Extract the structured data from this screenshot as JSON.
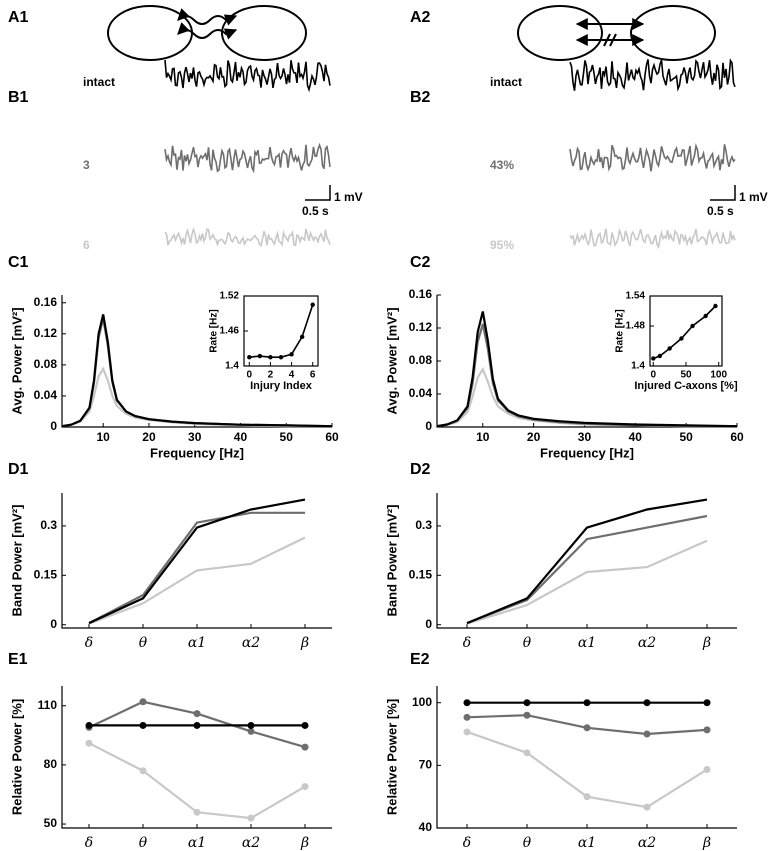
{
  "panel_labels": [
    "A1",
    "A2",
    "B1",
    "B2",
    "C1",
    "C2",
    "D1",
    "D2",
    "E1",
    "E2"
  ],
  "traces": {
    "left": [
      {
        "label": "intact",
        "color": "#000000"
      },
      {
        "label": "3",
        "color": "#6e6e6e"
      },
      {
        "label": "6",
        "color": "#c8c8c8"
      }
    ],
    "right": [
      {
        "label": "intact",
        "color": "#000000"
      },
      {
        "label": "43%",
        "color": "#6e6e6e"
      },
      {
        "label": "95%",
        "color": "#c8c8c8"
      }
    ]
  },
  "scale_bar": {
    "voltage": "1 mV",
    "time": "0.5 s"
  },
  "chart_data": [
    {
      "type": "line",
      "xlabel": "Frequency [Hz]",
      "ylabel": "Avg. Power [mV²]",
      "x": [
        1,
        3,
        5,
        7,
        8,
        9,
        10,
        11,
        12,
        13,
        15,
        17,
        20,
        25,
        30,
        40,
        50,
        60
      ],
      "series": [
        {
          "color": "#000000",
          "values": [
            0.001,
            0.003,
            0.008,
            0.025,
            0.06,
            0.12,
            0.145,
            0.11,
            0.06,
            0.035,
            0.02,
            0.014,
            0.01,
            0.007,
            0.005,
            0.003,
            0.002,
            0.001
          ]
        },
        {
          "color": "#6e6e6e",
          "values": [
            0.001,
            0.003,
            0.008,
            0.024,
            0.057,
            0.115,
            0.14,
            0.105,
            0.058,
            0.034,
            0.02,
            0.014,
            0.01,
            0.007,
            0.005,
            0.003,
            0.002,
            0.001
          ]
        },
        {
          "color": "#c8c8c8",
          "values": [
            0.001,
            0.003,
            0.007,
            0.02,
            0.04,
            0.065,
            0.075,
            0.06,
            0.04,
            0.027,
            0.017,
            0.012,
            0.009,
            0.006,
            0.004,
            0.002,
            0.001,
            0.001
          ]
        }
      ],
      "xlim": [
        1,
        60
      ],
      "ylim": [
        0,
        0.17
      ],
      "xticks": [
        10,
        20,
        30,
        40,
        50,
        60
      ],
      "yticks": [
        0,
        0.04,
        0.08,
        0.12,
        0.16
      ]
    },
    {
      "type": "line",
      "xlabel": "Injury Index",
      "ylabel": "Rate [Hz]",
      "markers": true,
      "x": [
        0,
        1,
        2,
        3,
        4,
        5,
        6
      ],
      "series": [
        {
          "color": "#000000",
          "values": [
            1.415,
            1.417,
            1.415,
            1.415,
            1.42,
            1.45,
            1.505
          ]
        }
      ],
      "xlim": [
        -0.5,
        6.5
      ],
      "ylim": [
        1.4,
        1.52
      ],
      "xticks": [
        0,
        2,
        4,
        6
      ],
      "yticks": [
        1.4,
        1.46,
        1.52
      ]
    },
    {
      "type": "line",
      "xlabel": "Frequency [Hz]",
      "ylabel": "Avg. Power [mV²]",
      "x": [
        1,
        3,
        5,
        7,
        8,
        9,
        10,
        11,
        12,
        13,
        15,
        17,
        20,
        25,
        30,
        40,
        50,
        60
      ],
      "series": [
        {
          "color": "#000000",
          "values": [
            0.001,
            0.003,
            0.008,
            0.025,
            0.06,
            0.115,
            0.14,
            0.105,
            0.058,
            0.034,
            0.02,
            0.014,
            0.01,
            0.007,
            0.005,
            0.003,
            0.002,
            0.001
          ]
        },
        {
          "color": "#6e6e6e",
          "values": [
            0.001,
            0.003,
            0.008,
            0.023,
            0.053,
            0.103,
            0.125,
            0.095,
            0.053,
            0.032,
            0.019,
            0.013,
            0.009,
            0.006,
            0.004,
            0.002,
            0.001,
            0.001
          ]
        },
        {
          "color": "#c8c8c8",
          "values": [
            0.001,
            0.003,
            0.006,
            0.018,
            0.037,
            0.06,
            0.07,
            0.055,
            0.037,
            0.025,
            0.016,
            0.011,
            0.008,
            0.005,
            0.003,
            0.002,
            0.001,
            0.001
          ]
        }
      ],
      "xlim": [
        1,
        60
      ],
      "ylim": [
        0,
        0.16
      ],
      "xticks": [
        10,
        20,
        30,
        40,
        50,
        60
      ],
      "yticks": [
        0,
        0.04,
        0.08,
        0.12,
        0.16
      ]
    },
    {
      "type": "line",
      "xlabel": "Injured C-axons [%]",
      "ylabel": "Rate [Hz]",
      "markers": true,
      "x": [
        0,
        10,
        25,
        43,
        60,
        80,
        95
      ],
      "series": [
        {
          "color": "#000000",
          "values": [
            1.415,
            1.42,
            1.435,
            1.455,
            1.48,
            1.5,
            1.52
          ]
        }
      ],
      "xlim": [
        -5,
        105
      ],
      "ylim": [
        1.4,
        1.54
      ],
      "xticks": [
        0,
        50,
        100
      ],
      "yticks": [
        1.4,
        1.48,
        1.54
      ]
    },
    {
      "type": "line",
      "ylabel": "Band Power [mV²]",
      "categories": [
        "δ",
        "θ",
        "α1",
        "α2",
        "β"
      ],
      "series": [
        {
          "color": "#000000",
          "values": [
            0.005,
            0.08,
            0.295,
            0.35,
            0.38
          ]
        },
        {
          "color": "#6e6e6e",
          "values": [
            0.005,
            0.09,
            0.31,
            0.34,
            0.34
          ]
        },
        {
          "color": "#c8c8c8",
          "values": [
            0.003,
            0.065,
            0.165,
            0.185,
            0.265
          ]
        }
      ],
      "ylim": [
        -0.01,
        0.4
      ],
      "yticks": [
        0,
        0.15,
        0.3
      ]
    },
    {
      "type": "line",
      "ylabel": "Band Power [mV²]",
      "categories": [
        "δ",
        "θ",
        "α1",
        "α2",
        "β"
      ],
      "series": [
        {
          "color": "#000000",
          "values": [
            0.005,
            0.08,
            0.295,
            0.35,
            0.38
          ]
        },
        {
          "color": "#6e6e6e",
          "values": [
            0.005,
            0.075,
            0.26,
            0.295,
            0.33
          ]
        },
        {
          "color": "#c8c8c8",
          "values": [
            0.003,
            0.06,
            0.16,
            0.175,
            0.255
          ]
        }
      ],
      "ylim": [
        -0.01,
        0.4
      ],
      "yticks": [
        0,
        0.15,
        0.3
      ]
    },
    {
      "type": "line",
      "ylabel": "Relative Power [%]",
      "markers": true,
      "categories": [
        "δ",
        "θ",
        "α1",
        "α2",
        "β"
      ],
      "series": [
        {
          "color": "#000000",
          "values": [
            100,
            100,
            100,
            100,
            100
          ]
        },
        {
          "color": "#6e6e6e",
          "values": [
            99,
            112,
            106,
            97,
            89
          ]
        },
        {
          "color": "#c8c8c8",
          "values": [
            91,
            77,
            56,
            53,
            69
          ]
        }
      ],
      "ylim": [
        48,
        120
      ],
      "yticks": [
        50,
        80,
        110
      ]
    },
    {
      "type": "line",
      "ylabel": "Relative Power [%]",
      "markers": true,
      "categories": [
        "δ",
        "θ",
        "α1",
        "α2",
        "β"
      ],
      "series": [
        {
          "color": "#000000",
          "values": [
            100,
            100,
            100,
            100,
            100
          ]
        },
        {
          "color": "#6e6e6e",
          "values": [
            93,
            94,
            88,
            85,
            87
          ]
        },
        {
          "color": "#c8c8c8",
          "values": [
            86,
            76,
            55,
            50,
            68
          ]
        }
      ],
      "ylim": [
        40,
        108
      ],
      "yticks": [
        40,
        70,
        100
      ]
    }
  ]
}
